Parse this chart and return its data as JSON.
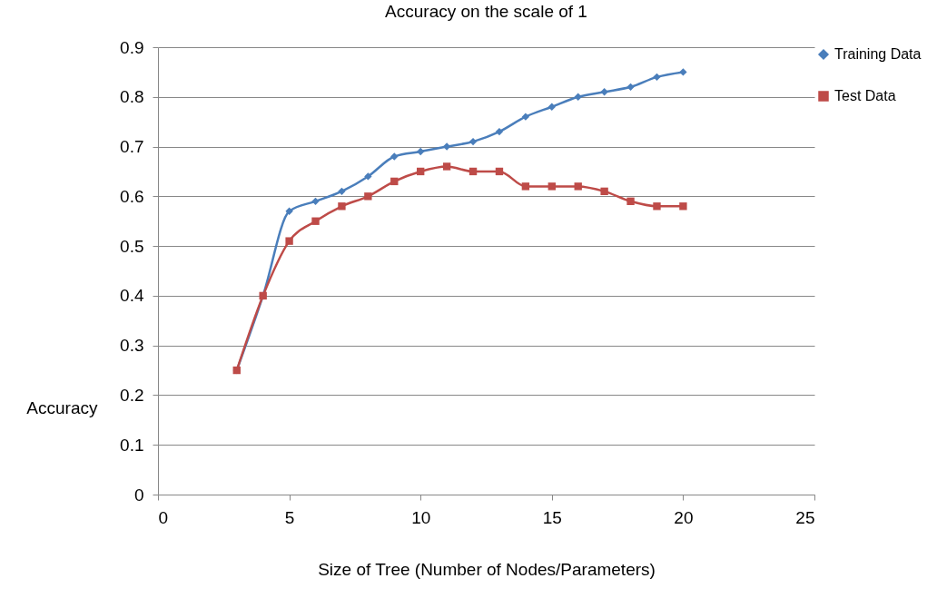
{
  "chart_data": {
    "type": "line",
    "title": "Accuracy on the scale of 1",
    "xlabel": "Size of Tree (Number of Nodes/Parameters)",
    "ylabel": "Accuracy",
    "x": [
      3,
      4,
      5,
      6,
      7,
      8,
      9,
      10,
      11,
      12,
      13,
      14,
      15,
      16,
      17,
      18,
      19,
      20
    ],
    "series": [
      {
        "name": "Training Data",
        "color": "#4a7ebb",
        "marker": "diamond",
        "values": [
          0.25,
          0.4,
          0.57,
          0.59,
          0.61,
          0.64,
          0.68,
          0.69,
          0.7,
          0.71,
          0.73,
          0.76,
          0.78,
          0.8,
          0.81,
          0.82,
          0.84,
          0.85
        ]
      },
      {
        "name": "Test Data",
        "color": "#be4b48",
        "marker": "square",
        "values": [
          0.25,
          0.4,
          0.51,
          0.55,
          0.58,
          0.6,
          0.63,
          0.65,
          0.66,
          0.65,
          0.65,
          0.62,
          0.62,
          0.62,
          0.61,
          0.59,
          0.58,
          0.58
        ]
      }
    ],
    "xlim": [
      0,
      25
    ],
    "xticks": [
      0,
      5,
      10,
      15,
      20,
      25
    ],
    "ylim": [
      0,
      0.9
    ],
    "yticks": [
      0,
      0.1,
      0.2,
      0.3,
      0.4,
      0.5,
      0.6,
      0.7,
      0.8,
      0.9
    ],
    "grid": "y",
    "legend": "right",
    "line_style": "solid"
  }
}
